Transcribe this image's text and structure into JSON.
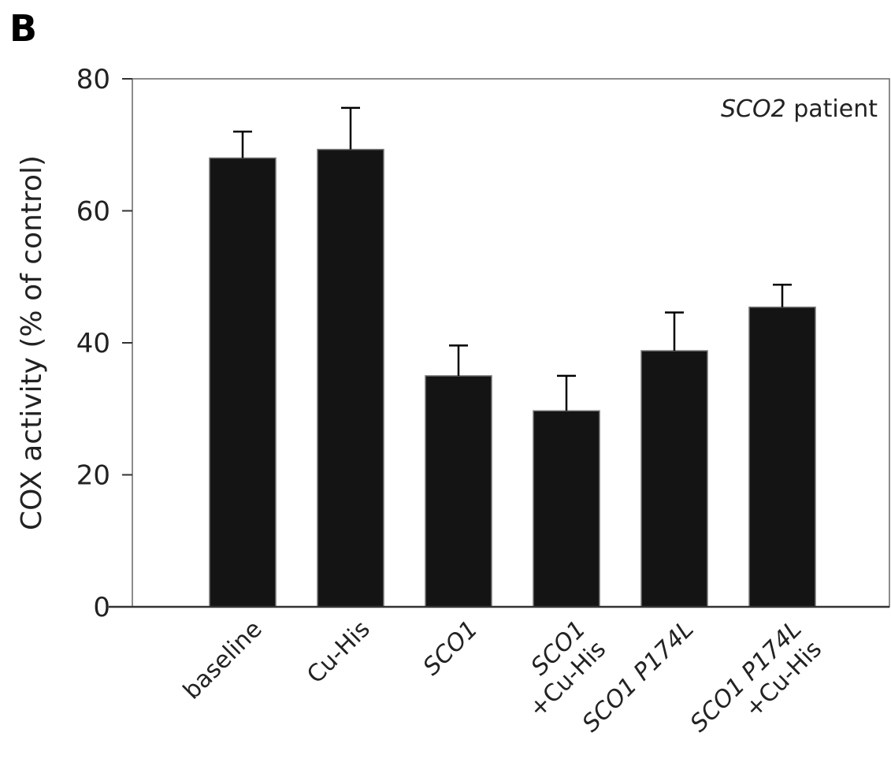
{
  "panel_letter": "B",
  "chart_data": {
    "type": "bar",
    "categories": [
      [
        "baseline"
      ],
      [
        "Cu-His"
      ],
      [
        {
          "t": "SCO1",
          "i": true
        }
      ],
      [
        {
          "t": "SCO1",
          "i": true
        },
        {
          "t": "+Cu-His",
          "i": false
        }
      ],
      [
        {
          "t": "SCO1 P174L",
          "i": true
        }
      ],
      [
        {
          "t": "SCO1 P174L",
          "i": true
        },
        {
          "t": "+Cu-His",
          "i": false
        }
      ]
    ],
    "category_names": [
      "baseline",
      "Cu-His",
      "SCO1",
      "SCO1+Cu-His",
      "SCO1 P174L",
      "SCO1 P174L +Cu-His"
    ],
    "values": [
      68,
      69.3,
      35,
      29.7,
      38.8,
      45.4
    ],
    "error_upper": [
      72,
      75.6,
      39.6,
      35,
      44.6,
      48.8
    ],
    "ylabel": "COX activity (% of control)",
    "xlabel": "",
    "ylim": [
      0,
      80
    ],
    "yticks": [
      0,
      20,
      40,
      60,
      80
    ],
    "annotation": {
      "italic": "SCO2",
      "plain": " patient"
    },
    "bar_color": "#141414",
    "grid": false
  }
}
